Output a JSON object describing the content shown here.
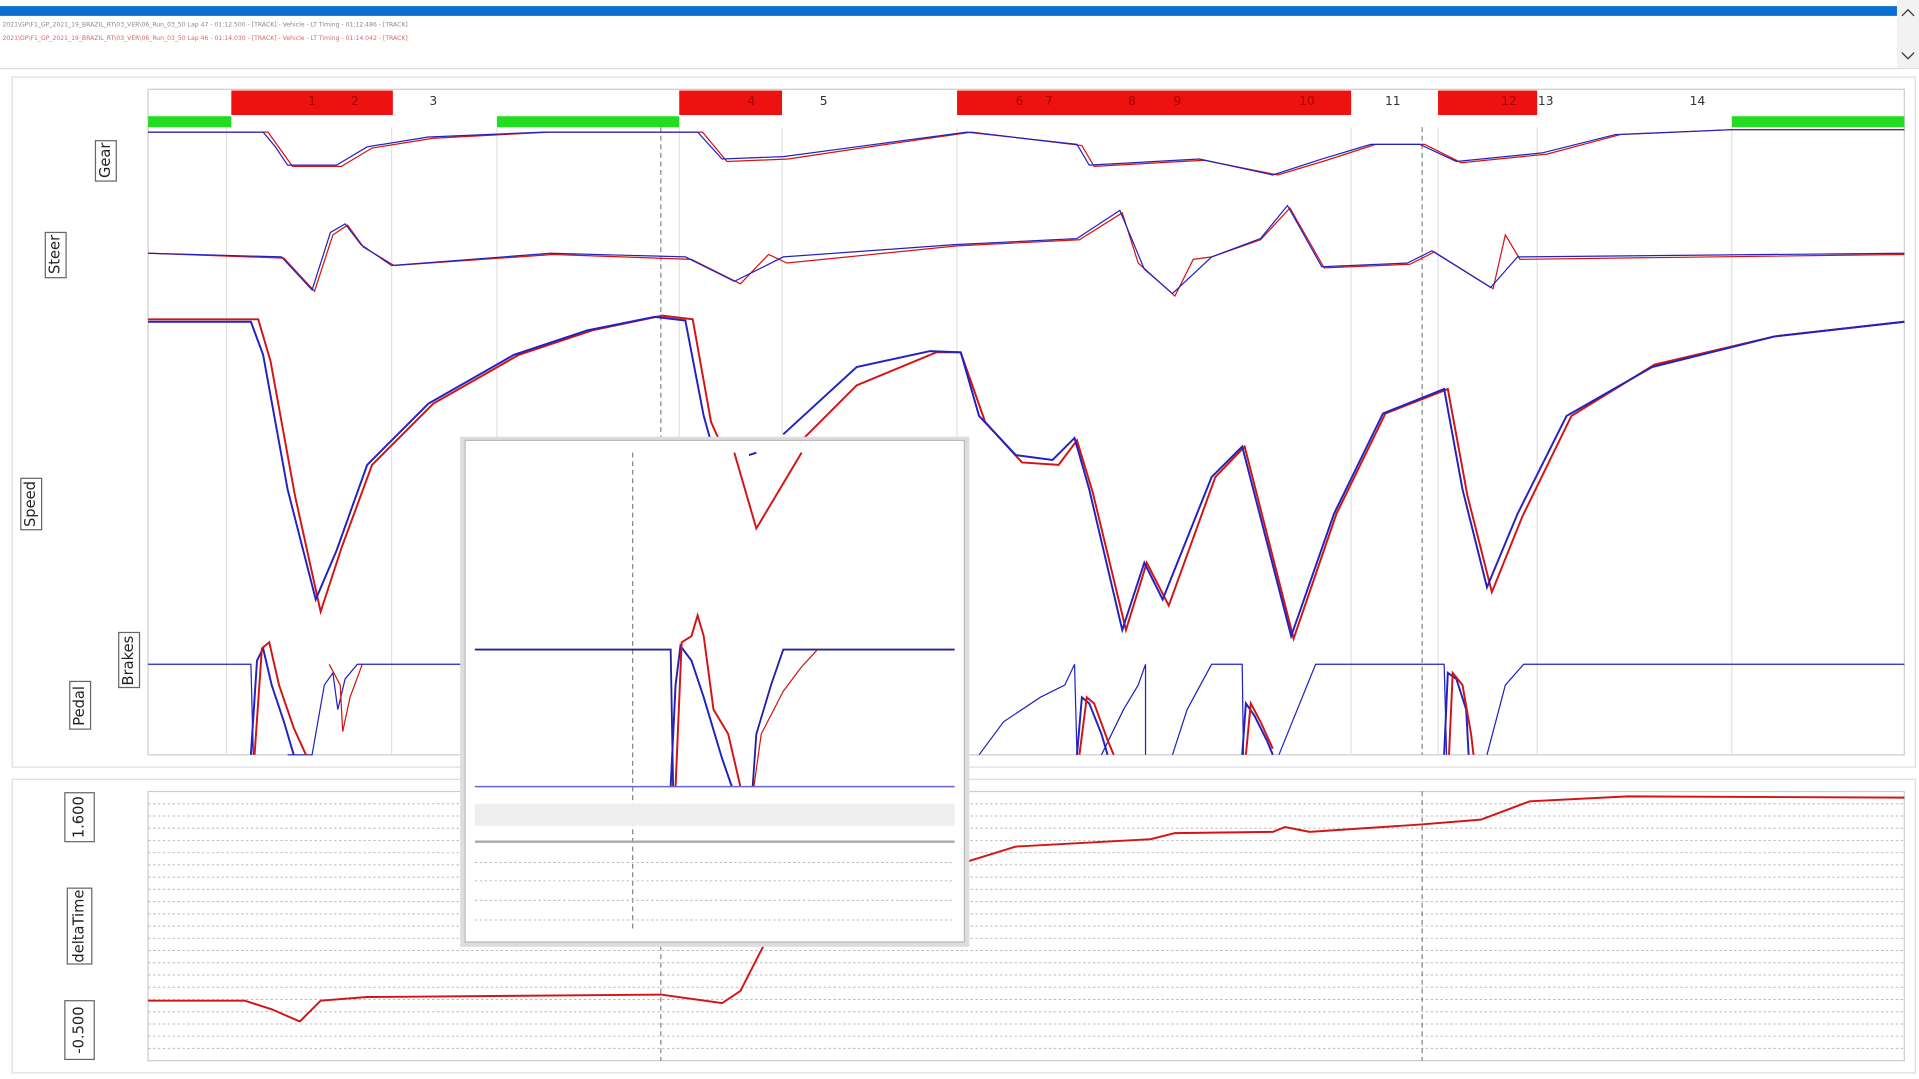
{
  "header": {
    "files": [
      "2021\\GP\\F1_GP_2021_19_BRAZIL_RT\\03_VER\\06_Run_03_50 Lap 47 - 01:12.500 - [TRACK] - Vehicle - LT Timing - 01:12.486 - [TRACK]",
      "2021\\GP\\F1_GP_2021_19_BRAZIL_RT\\03_VER\\06_Run_03_50 Lap 46 - 01:14.030 - [TRACK] - Vehicle - LT Timing - 01:14.042 - [TRACK]"
    ]
  },
  "corners": [
    "1",
    "2",
    "3",
    "4",
    "5",
    "6",
    "7",
    "8",
    "9",
    "10",
    "11",
    "12",
    "13",
    "14"
  ],
  "channels": {
    "gear": "Gear",
    "steer": "Steer",
    "speed": "Speed",
    "brakes": "Brakes",
    "pedal": "Pedal"
  },
  "delta": {
    "label": "deltaTime",
    "max": "1.600",
    "min": "-0.500"
  }
}
